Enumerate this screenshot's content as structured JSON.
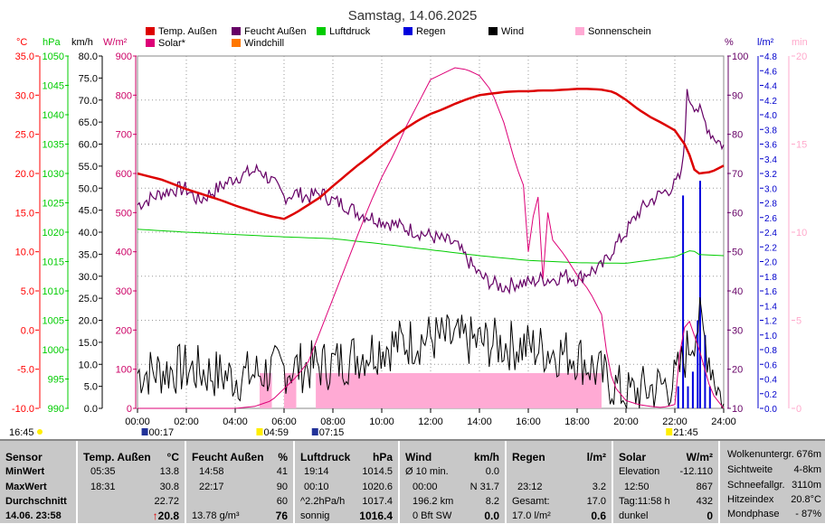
{
  "title": "Samstag, 14.06.2025",
  "legend": [
    {
      "label": "Temp. Außen",
      "color": "#dd0000"
    },
    {
      "label": "Feucht Außen",
      "color": "#660066"
    },
    {
      "label": "Luftdruck",
      "color": "#00cc00"
    },
    {
      "label": "Regen",
      "color": "#0000dd"
    },
    {
      "label": "Wind",
      "color": "#000000"
    },
    {
      "label": "Sonnenschein",
      "color": "#ffaad4"
    },
    {
      "label": "Solar*",
      "color": "#dd0077"
    },
    {
      "label": "Windchill",
      "color": "#ff7700"
    }
  ],
  "axis_units": {
    "temp": "°C",
    "pressure": "hPa",
    "wind": "km/h",
    "solar": "W/m²",
    "humidity": "%",
    "rain": "l/m²",
    "sun": "min"
  },
  "axis_colors": {
    "temp": "#ff0000",
    "pressure": "#00cc00",
    "wind": "#000000",
    "solar": "#cc0066",
    "humidity": "#660066",
    "rain": "#0000cc",
    "sun": "#ffaacc"
  },
  "y_ticks": {
    "temp": [
      "35.0",
      "30.0",
      "25.0",
      "20.0",
      "15.0",
      "10.0",
      "5.0",
      "0.0",
      "-5.0",
      "-10.0"
    ],
    "pressure": [
      "1050",
      "1045",
      "1040",
      "1035",
      "1030",
      "1025",
      "1020",
      "1015",
      "1010",
      "1005",
      "1000",
      "995",
      "990"
    ],
    "wind": [
      "80.0",
      "75.0",
      "70.0",
      "65.0",
      "60.0",
      "55.0",
      "50.0",
      "45.0",
      "40.0",
      "35.0",
      "30.0",
      "25.0",
      "20.0",
      "15.0",
      "10.0",
      "5.0",
      "0.0"
    ],
    "solar": [
      "900",
      "800",
      "700",
      "600",
      "500",
      "400",
      "300",
      "200",
      "100",
      "0"
    ],
    "humidity": [
      "100",
      "90",
      "80",
      "70",
      "60",
      "50",
      "40",
      "30",
      "20",
      "10"
    ],
    "rain": [
      "4.8",
      "4.6",
      "4.4",
      "4.2",
      "4.0",
      "3.8",
      "3.6",
      "3.4",
      "3.2",
      "3.0",
      "2.8",
      "2.6",
      "2.4",
      "2.2",
      "2.0",
      "1.8",
      "1.6",
      "1.4",
      "1.2",
      "1.0",
      "0.8",
      "0.6",
      "0.4",
      "0.2",
      "0.0"
    ],
    "sun": [
      "20",
      "15",
      "10",
      "5",
      "0"
    ]
  },
  "x_ticks": [
    "00:00",
    "02:00",
    "04:00",
    "06:00",
    "08:00",
    "10:00",
    "12:00",
    "14:00",
    "16:00",
    "18:00",
    "20:00",
    "22:00",
    "24:00"
  ],
  "events": {
    "moonset": "00:17",
    "sunrise": "04:59",
    "moonrise": "07:15",
    "sunset": "21:45",
    "day_start_label": "16:45"
  },
  "chart_data": {
    "type": "line",
    "x_unit": "hours",
    "xlim": [
      0,
      24
    ],
    "series": [
      {
        "name": "Temp. Außen",
        "unit": "°C",
        "ylim": [
          -10,
          35
        ],
        "x": [
          0,
          0.5,
          1,
          1.5,
          2,
          2.5,
          3,
          3.5,
          4,
          4.5,
          5,
          5.5,
          6,
          6.5,
          7,
          7.5,
          8,
          8.5,
          9,
          9.5,
          10,
          10.5,
          11,
          11.5,
          12,
          12.5,
          13,
          13.5,
          14,
          14.5,
          15,
          15.5,
          16,
          16.5,
          17,
          17.5,
          18,
          18.5,
          19,
          19.5,
          20,
          20.5,
          21,
          21.5,
          22,
          22.5,
          22.8,
          23,
          23.5,
          24
        ],
        "values": [
          20.0,
          19.6,
          19.2,
          18.6,
          18.0,
          17.5,
          17.0,
          16.5,
          15.9,
          15.4,
          14.9,
          14.5,
          14.2,
          15.0,
          16.0,
          17.0,
          18.4,
          19.7,
          21.0,
          22.2,
          23.5,
          24.7,
          25.8,
          26.8,
          27.6,
          28.2,
          28.9,
          29.5,
          30.0,
          30.2,
          30.4,
          30.5,
          30.5,
          30.6,
          30.6,
          30.7,
          30.8,
          30.8,
          30.7,
          30.4,
          29.4,
          28.2,
          27.2,
          26.4,
          25.5,
          23.3,
          20.5,
          20.0,
          20.2,
          21.0
        ]
      },
      {
        "name": "Feucht Außen",
        "unit": "%",
        "ylim": [
          10,
          100
        ],
        "x": [
          0,
          1,
          1.5,
          2,
          2.5,
          3,
          3.5,
          4,
          4.5,
          5,
          5.5,
          6,
          6.5,
          7,
          7.5,
          8,
          8.5,
          9,
          9.5,
          10,
          10.5,
          11,
          11.5,
          12,
          12.5,
          13,
          13.5,
          14,
          14.5,
          15,
          15.5,
          16,
          16.5,
          17,
          17.5,
          18,
          18.5,
          19,
          19.5,
          20,
          20.5,
          21,
          21.5,
          22,
          22.3,
          22.5,
          23,
          23.5,
          24
        ],
        "values": [
          62,
          65,
          66,
          66,
          63,
          65,
          67,
          69,
          70,
          71,
          68,
          64,
          65,
          64,
          65,
          63,
          62,
          60,
          59,
          58,
          57,
          56,
          55,
          54,
          53,
          52,
          48,
          44,
          42,
          41,
          42,
          42,
          43,
          43,
          44,
          43,
          45,
          46,
          51,
          55,
          60,
          63,
          65,
          67,
          70,
          90,
          86,
          80,
          77
        ]
      },
      {
        "name": "Luftdruck",
        "unit": "hPa",
        "ylim": [
          990,
          1050
        ],
        "x": [
          0,
          2,
          4,
          6,
          8,
          10,
          12,
          14,
          16,
          18,
          20,
          22,
          22.7,
          23,
          24
        ],
        "values": [
          1020.5,
          1020.0,
          1019.6,
          1019.2,
          1018.9,
          1018.0,
          1017.0,
          1016.0,
          1015.2,
          1014.8,
          1014.7,
          1015.8,
          1017.0,
          1016.2,
          1016.0
        ]
      },
      {
        "name": "Solar*",
        "unit": "W/m²",
        "ylim": [
          0,
          900
        ],
        "x": [
          0,
          4,
          4.8,
          5.5,
          6,
          6.5,
          7,
          7.5,
          8,
          8.5,
          9,
          9.5,
          10,
          10.5,
          11,
          11.5,
          12,
          12.5,
          13,
          13.5,
          14,
          14.5,
          15,
          15.5,
          15.8,
          16.0,
          16.2,
          16.4,
          16.6,
          16.8,
          17,
          17.5,
          18,
          18.5,
          19,
          19.3,
          19.6,
          20,
          20.5,
          21,
          21.5,
          22,
          22.2,
          22.5,
          23,
          23.5,
          24
        ],
        "values": [
          0,
          0,
          5,
          20,
          50,
          80,
          120,
          200,
          280,
          360,
          440,
          520,
          590,
          650,
          720,
          780,
          840,
          855,
          870,
          865,
          850,
          810,
          730,
          620,
          570,
          400,
          490,
          540,
          330,
          500,
          430,
          390,
          340,
          300,
          240,
          100,
          50,
          20,
          10,
          5,
          2,
          10,
          140,
          240,
          150,
          40,
          0
        ]
      },
      {
        "name": "Wind",
        "unit": "km/h",
        "ylim": [
          0,
          80
        ],
        "note": "noisy 2–25 km/h",
        "x": [
          0,
          2,
          4,
          6,
          8,
          10,
          12,
          14,
          16,
          18,
          20,
          22,
          23,
          24
        ],
        "values": [
          8,
          9,
          7,
          9,
          10,
          14,
          16,
          15,
          14,
          12,
          3,
          6,
          20,
          0
        ]
      },
      {
        "name": "Regen",
        "unit": "l/m²",
        "ylim": [
          0,
          4.8
        ],
        "x": [
          22.1,
          22.3,
          22.5,
          22.7,
          22.9,
          23.0,
          23.2,
          23.4
        ],
        "values": [
          0.3,
          2.9,
          0.3,
          0.5,
          1.2,
          3.1,
          1.0,
          0.3
        ]
      },
      {
        "name": "Sonnenschein",
        "unit": "min",
        "ylim": [
          0,
          20
        ],
        "x": [
          5.0,
          5.5,
          6.0,
          7.3,
          9,
          12,
          15,
          16,
          18,
          19.0
        ],
        "values": [
          2,
          0,
          2,
          2,
          2,
          2,
          2,
          2,
          2,
          2
        ]
      }
    ]
  },
  "table": {
    "sensor": {
      "header": "Sensor",
      "rows": [
        "MinWert",
        "MaxWert",
        "Durchschnitt"
      ],
      "footer": "14.06. 23:58"
    },
    "temp": {
      "header": "Temp. Außen",
      "unit": "°C",
      "min_time": "05:35",
      "min": "13.8",
      "max_time": "18:31",
      "max": "30.8",
      "avg": "22.72",
      "current": "20.8",
      "arrow": "↑"
    },
    "humid": {
      "header": "Feucht Außen",
      "unit": "%",
      "min_time": "14:58",
      "min": "41",
      "max_time": "22:17",
      "max": "90",
      "avg": "60",
      "abs": "13.78 g/m³",
      "current": "76"
    },
    "press": {
      "header": "Luftdruck",
      "unit": "hPa",
      "min_time": "19:14",
      "min": "1014.5",
      "max_time": "00:10",
      "max": "1020.6",
      "trend": "^2.2hPa/h",
      "avg": "1017.4",
      "state": "sonnig",
      "current": "1016.4"
    },
    "wind": {
      "header": "Wind",
      "unit": "km/h",
      "r1l": "Ø 10 min.",
      "r1v": "0.0",
      "r2l": "00:00",
      "r2m": "N 31.7",
      "r3l": "196.2 km",
      "r3v": "8.2",
      "r4l": "0 Bft SW",
      "r4v": "0.0"
    },
    "rain": {
      "header": "Regen",
      "unit": "l/m²",
      "r2l": "23:12",
      "r2v": "3.2",
      "r3l": "Gesamt:",
      "r3v": "17.0",
      "r4l": "17.0 l/m²",
      "r4v": "0.6"
    },
    "solar": {
      "header": "Solar",
      "unit": "W/m²",
      "r1l": "Elevation",
      "r1v": "-12.110",
      "r2l": "12:50",
      "r2v": "867",
      "r3l": "Tag:11:58 h",
      "r3v": "432",
      "r4l": "dunkel",
      "r4v": "0"
    },
    "extra": [
      {
        "label": "Wolkenuntergr.",
        "value": "676m"
      },
      {
        "label": "Sichtweite",
        "value": "4-8km"
      },
      {
        "label": "Schneefallgr.",
        "value": "3110m"
      },
      {
        "label": "Hitzeindex",
        "value": "20.8°C"
      },
      {
        "label": "Mondphase",
        "value": "- 87%"
      }
    ]
  }
}
